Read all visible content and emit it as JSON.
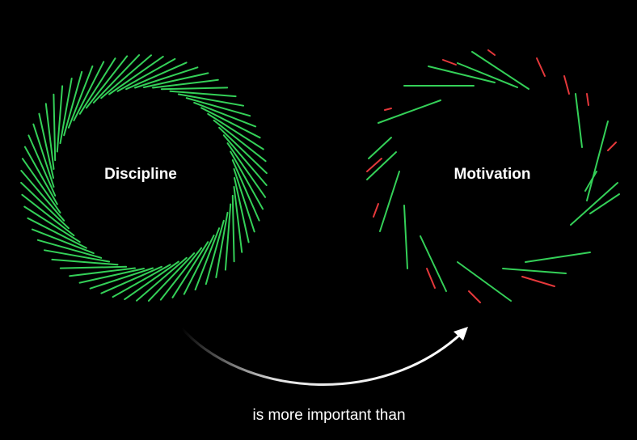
{
  "discipline": {
    "label": "Discipline"
  },
  "motivation": {
    "label": "Motivation"
  },
  "caption": "is more important than",
  "colors": {
    "background": "#000000",
    "stroke_green": "#34d058",
    "stroke_red": "#e5383b",
    "text": "#ffffff"
  }
}
